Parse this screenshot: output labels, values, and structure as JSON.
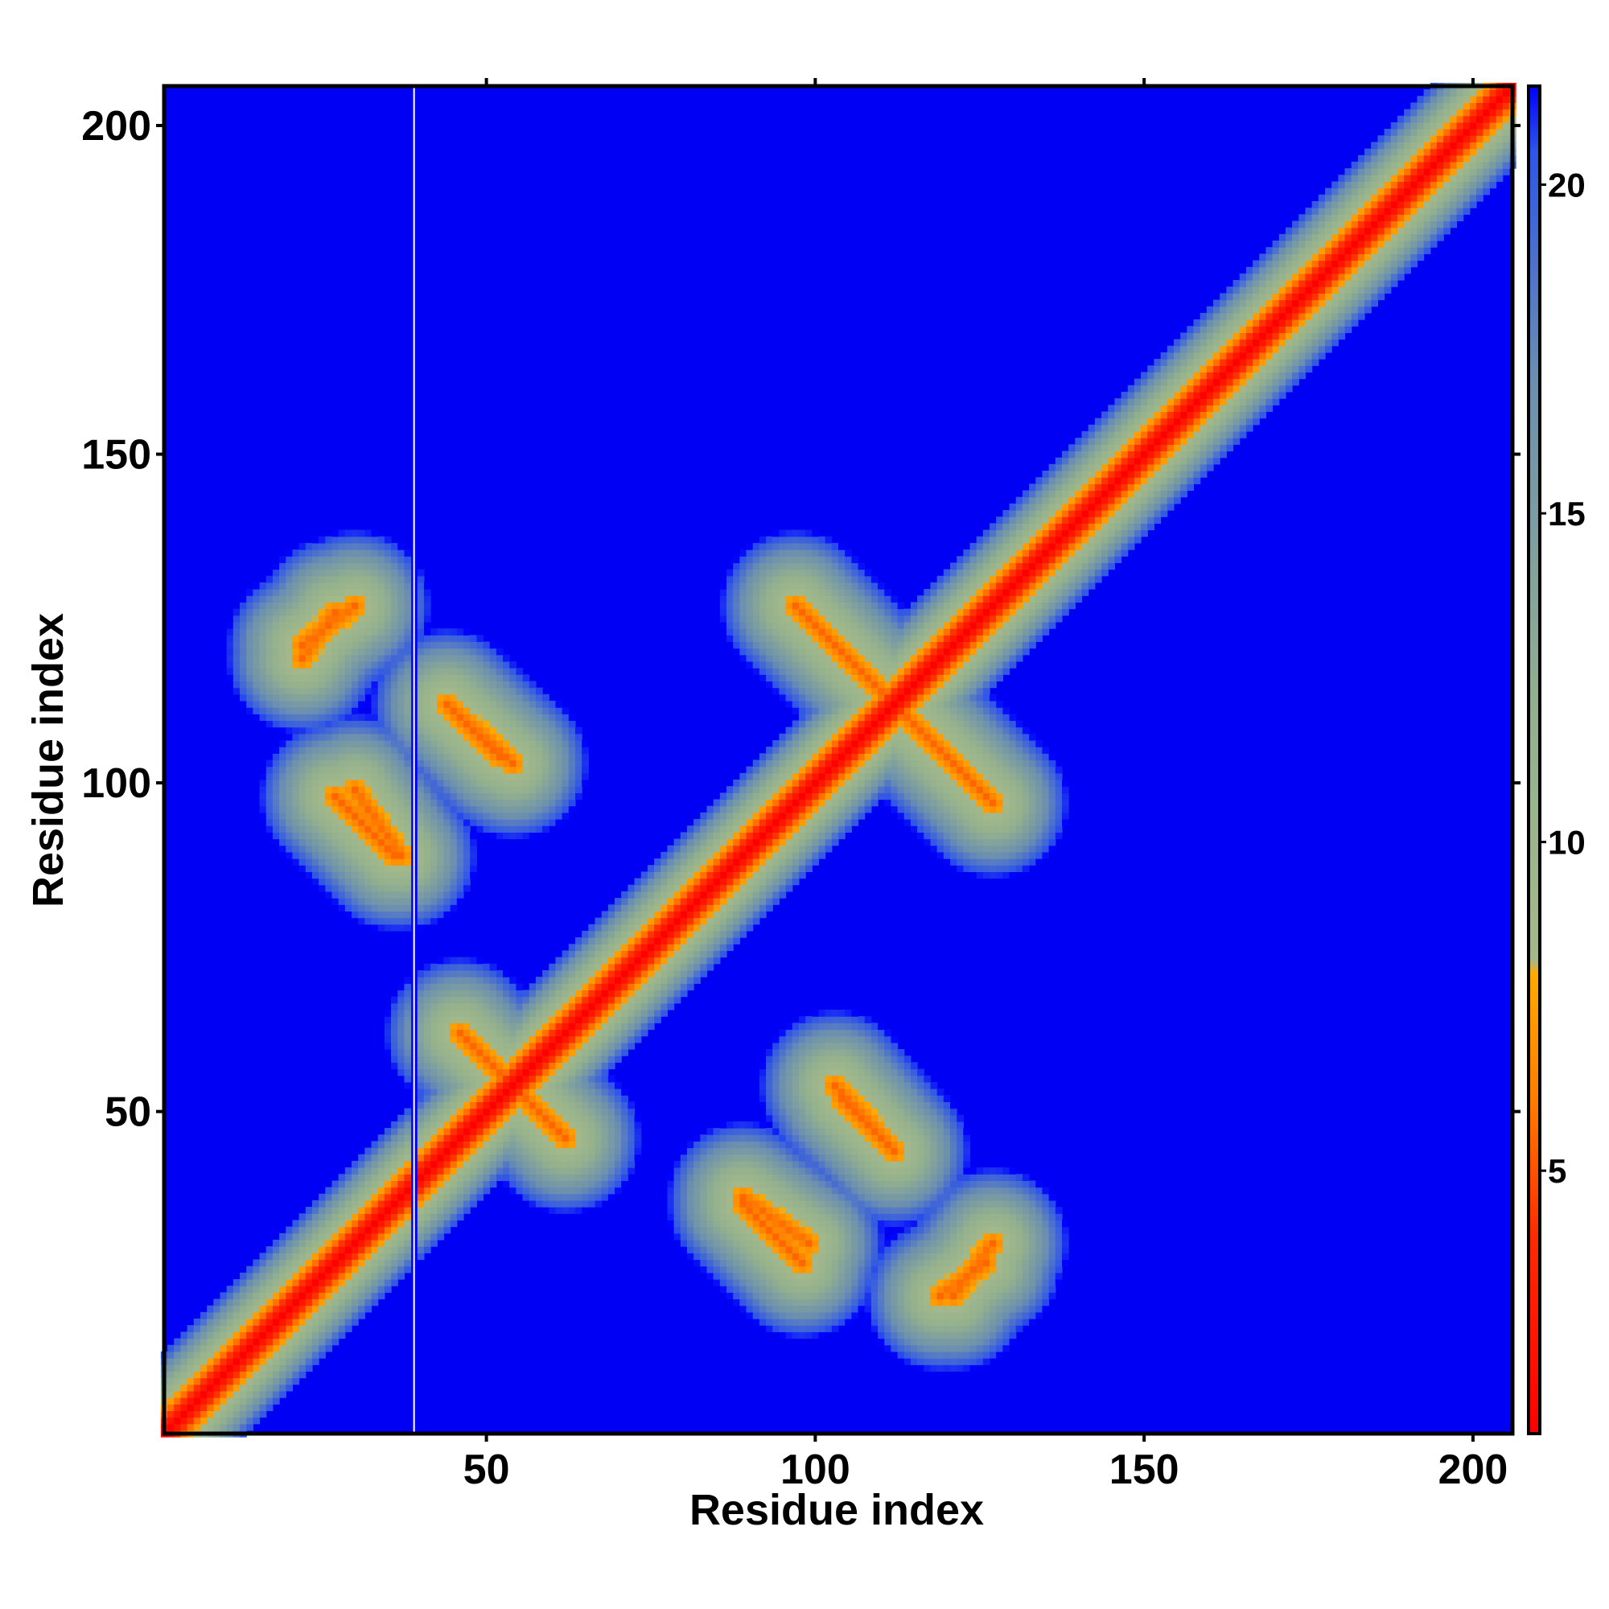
{
  "chart_data": {
    "type": "heatmap",
    "title": "",
    "xlabel": "Residue index",
    "ylabel": "Residue index",
    "xlim": [
      1,
      206
    ],
    "ylim": [
      1,
      206
    ],
    "xticks": [
      50,
      100,
      150,
      200
    ],
    "yticks": [
      50,
      100,
      150,
      200
    ],
    "colorbar": {
      "range": [
        1,
        21.5
      ],
      "ticks": [
        5,
        10,
        15,
        20
      ],
      "stops": [
        {
          "value": 1,
          "color": "#ff0000"
        },
        {
          "value": 4,
          "color": "#ff2a00"
        },
        {
          "value": 6,
          "color": "#ff7a00"
        },
        {
          "value": 8,
          "color": "#ffaa00"
        },
        {
          "value": 8.2,
          "color": "#a4b98a"
        },
        {
          "value": 12,
          "color": "#93b08e"
        },
        {
          "value": 17,
          "color": "#6b8fb0"
        },
        {
          "value": 20.5,
          "color": "#2f55e8"
        },
        {
          "value": 21.5,
          "color": "#0000ff"
        }
      ]
    },
    "background_color": "#0000f5",
    "blank_column": 39,
    "features": [
      {
        "kind": "diagonal",
        "from": 1,
        "to": 206
      },
      {
        "kind": "contact-line",
        "from": [
          22,
          119
        ],
        "to": [
          27,
          126
        ]
      },
      {
        "kind": "contact-line",
        "from": [
          30,
          99
        ],
        "to": [
          37,
          89
        ]
      },
      {
        "kind": "contact-line",
        "from": [
          44,
          112
        ],
        "to": [
          52,
          104
        ]
      },
      {
        "kind": "contact-line",
        "from": [
          46,
          62
        ],
        "to": [
          62,
          46
        ]
      },
      {
        "kind": "contact-line",
        "from": [
          97,
          127
        ],
        "to": [
          127,
          97
        ]
      },
      {
        "kind": "contact-line",
        "from": [
          103,
          54
        ],
        "to": [
          112,
          44
        ]
      },
      {
        "kind": "contact-line",
        "from": [
          89,
          36
        ],
        "to": [
          98,
          27
        ]
      },
      {
        "kind": "contact-line",
        "from": [
          121,
          22
        ],
        "to": [
          127,
          30
        ]
      }
    ]
  }
}
